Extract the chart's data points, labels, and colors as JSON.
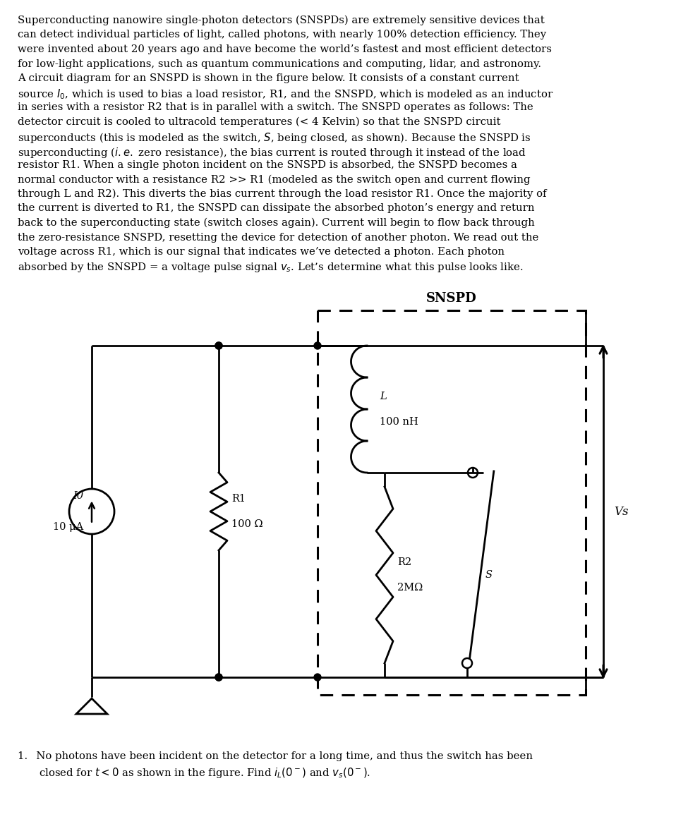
{
  "bg_color": "#ffffff",
  "text_color": "#000000",
  "snspd_label": "SNSPD",
  "I0_label1": "I0",
  "I0_label2": "10 μA",
  "R1_label1": "R1",
  "R1_label2": "100 Ω",
  "L_label1": "L",
  "L_label2": "100 nH",
  "R2_label1": "R2",
  "R2_label2": "2MΩ",
  "S_label": "S",
  "Vs_label": "Vs",
  "font_size_body": 10.8,
  "font_size_diagram": 10.5
}
